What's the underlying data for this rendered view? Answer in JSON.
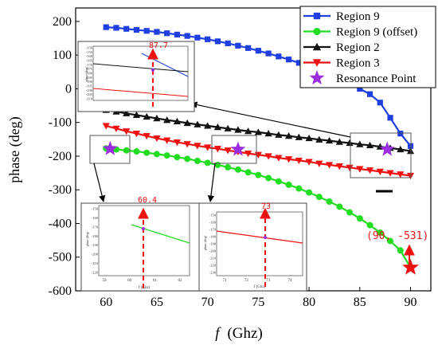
{
  "chart_data": {
    "type": "line",
    "xlabel_symbol": "f",
    "xlabel_unit": "(Ghz)",
    "ylabel": "phase  (deg)",
    "xlim": [
      57,
      92
    ],
    "ylim": [
      -600,
      240
    ],
    "xticks": [
      60,
      65,
      70,
      75,
      80,
      85,
      90
    ],
    "yticks": [
      200,
      100,
      0,
      -100,
      -200,
      -300,
      -400,
      -500,
      -600
    ],
    "legend_position": "top-right",
    "series": [
      {
        "name": "Region 9",
        "color": "#1f3fe0",
        "marker": "square",
        "x": [
          60,
          61,
          62,
          63,
          64,
          65,
          66,
          67,
          68,
          69,
          70,
          71,
          72,
          73,
          74,
          75,
          76,
          77,
          78,
          79,
          80,
          81,
          82,
          83,
          84,
          85,
          86,
          87,
          88,
          89,
          90
        ],
        "y": [
          183,
          181,
          178,
          175,
          172,
          169,
          165,
          161,
          157,
          152,
          147,
          141,
          135,
          128,
          121,
          113,
          105,
          96,
          87,
          77,
          66,
          54,
          42,
          29,
          15,
          0,
          -16,
          -41,
          -86,
          -133,
          -170
        ]
      },
      {
        "name": "Region 9 (offset)",
        "color": "#22dd22",
        "marker": "circle",
        "x": [
          60,
          61,
          62,
          63,
          64,
          65,
          66,
          67,
          68,
          69,
          70,
          71,
          72,
          73,
          74,
          75,
          76,
          77,
          78,
          79,
          80,
          81,
          82,
          83,
          84,
          85,
          86,
          87,
          88,
          89,
          90
        ],
        "y": [
          -177,
          -180,
          -183,
          -186,
          -190,
          -194,
          -198,
          -203,
          -208,
          -214,
          -220,
          -226,
          -233,
          -240,
          -248,
          -256,
          -265,
          -275,
          -285,
          -296,
          -308,
          -321,
          -335,
          -350,
          -367,
          -385,
          -405,
          -427,
          -452,
          -480,
          -531
        ]
      },
      {
        "name": "Region 2",
        "color": "#111111",
        "marker": "triangle-up",
        "x": [
          60,
          61,
          62,
          63,
          64,
          65,
          66,
          67,
          68,
          69,
          70,
          71,
          72,
          73,
          74,
          75,
          76,
          77,
          78,
          79,
          80,
          81,
          82,
          83,
          84,
          85,
          86,
          87,
          88,
          89,
          90
        ],
        "y": [
          -63,
          -68,
          -73,
          -78,
          -83,
          -88,
          -93,
          -97,
          -102,
          -106,
          -110,
          -114,
          -118,
          -122,
          -126,
          -129,
          -133,
          -137,
          -140,
          -144,
          -147,
          -151,
          -154,
          -158,
          -161,
          -165,
          -168,
          -172,
          -176,
          -180,
          -185
        ]
      },
      {
        "name": "Region 3",
        "color": "#ee1111",
        "marker": "triangle-down",
        "x": [
          60,
          61,
          62,
          63,
          64,
          65,
          66,
          67,
          68,
          69,
          70,
          71,
          72,
          73,
          74,
          75,
          76,
          77,
          78,
          79,
          80,
          81,
          82,
          83,
          84,
          85,
          86,
          87,
          88,
          89,
          90
        ],
        "y": [
          -110,
          -118,
          -126,
          -133,
          -140,
          -147,
          -153,
          -159,
          -164,
          -169,
          -174,
          -178,
          -183,
          -187,
          -192,
          -196,
          -200,
          -205,
          -209,
          -213,
          -217,
          -222,
          -226,
          -230,
          -234,
          -238,
          -242,
          -246,
          -250,
          -254,
          -258
        ]
      }
    ],
    "resonance_points": {
      "name": "Resonance Point",
      "color": "#9b2fe0",
      "x": [
        60.4,
        73,
        87.7
      ],
      "y": [
        -178,
        -180,
        -180
      ]
    },
    "annotations": {
      "red_star": {
        "x": 90,
        "y": -531,
        "label": "(90, -531)"
      },
      "inset_top_label": "87.7",
      "inset_left_label": "60.4",
      "inset_mid_label": "73",
      "inset_axis_word": "phase (deg)",
      "inset_xunit": "f (Ghz)",
      "inset_top_ytick_labels": [
        "-150",
        "-155",
        "-160",
        "-165",
        "-170",
        "-175",
        "-180",
        "-185",
        "-190",
        "-195",
        "-200",
        "-205",
        "-210"
      ],
      "inset_left_ytick_labels": [
        "-150",
        "-160",
        "-170",
        "-180",
        "-190",
        "-200",
        "-210",
        "-220"
      ],
      "inset_left_xtick_labels": [
        "59",
        "60",
        "61",
        "62"
      ],
      "inset_mid_ytick_labels": [
        "-150",
        "-160",
        "-170",
        "-180",
        "-190",
        "-200",
        "-210",
        "-220",
        "-230"
      ],
      "inset_mid_xtick_labels": [
        "71",
        "72",
        "73",
        "74"
      ]
    }
  }
}
